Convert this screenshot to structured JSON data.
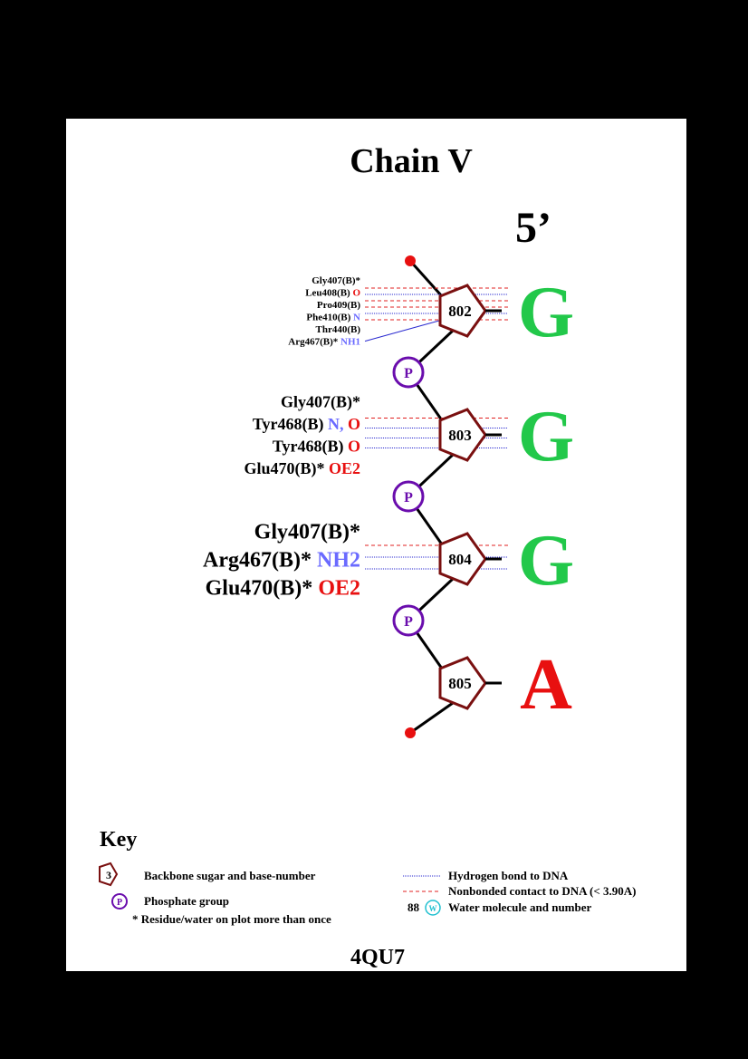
{
  "title": "Chain V",
  "end_label": "5’",
  "pdb_code": "4QU7",
  "colors": {
    "sugar": "#7a1010",
    "phosphate": "#6a0dad",
    "hbond": "#2a2ad0",
    "nonbonded": "#e02020",
    "base_G": "#22c84a",
    "base_A": "#e81010",
    "atom_blue": "#6a6aff",
    "atom_red": "#e81010",
    "terminal": "#e81010",
    "water": "#20c0d0"
  },
  "nucleotides": [
    {
      "number": "802",
      "base": "G",
      "contacts": [
        {
          "residue": "Gly407(B)*",
          "atoms": [],
          "lines": [
            "nonbonded"
          ]
        },
        {
          "residue": "Leu408(B)",
          "atoms": [
            {
              "t": "O",
              "c": "red"
            }
          ],
          "lines": [
            "hbond"
          ]
        },
        {
          "residue": "Pro409(B)",
          "atoms": [],
          "lines": [
            "nonbonded",
            "nonbonded"
          ]
        },
        {
          "residue": "Phe410(B)",
          "atoms": [
            {
              "t": "N",
              "c": "blue"
            }
          ],
          "lines": [
            "hbond"
          ]
        },
        {
          "residue": "Thr440(B)",
          "atoms": [],
          "lines": [
            "nonbonded"
          ]
        },
        {
          "residue": "Arg467(B)*",
          "atoms": [
            {
              "t": "NH1",
              "c": "blue"
            }
          ],
          "lines": [
            "hbond-diag"
          ]
        }
      ]
    },
    {
      "number": "803",
      "base": "G",
      "contacts": [
        {
          "residue": "Gly407(B)*",
          "atoms": [],
          "lines": [
            "nonbonded"
          ]
        },
        {
          "residue": "Tyr468(B)",
          "atoms": [
            {
              "t": "N,",
              "c": "blue"
            },
            {
              "t": "O",
              "c": "red"
            }
          ],
          "lines": [
            "hbond"
          ]
        },
        {
          "residue": "Tyr468(B)",
          "atoms": [
            {
              "t": "O",
              "c": "red"
            }
          ],
          "lines": [
            "hbond"
          ]
        },
        {
          "residue": "Glu470(B)*",
          "atoms": [
            {
              "t": "OE2",
              "c": "red"
            }
          ],
          "lines": [
            "hbond"
          ]
        }
      ]
    },
    {
      "number": "804",
      "base": "G",
      "contacts": [
        {
          "residue": "Gly407(B)*",
          "atoms": [],
          "lines": [
            "nonbonded"
          ]
        },
        {
          "residue": "Arg467(B)*",
          "atoms": [
            {
              "t": "NH2",
              "c": "blue"
            }
          ],
          "lines": [
            "hbond"
          ]
        },
        {
          "residue": "Glu470(B)*",
          "atoms": [
            {
              "t": "OE2",
              "c": "red"
            }
          ],
          "lines": [
            "hbond"
          ]
        }
      ]
    },
    {
      "number": "805",
      "base": "A",
      "contacts": []
    }
  ],
  "phosphate_label": "P",
  "key": {
    "title": "Key",
    "sugar_example_number": "3",
    "sugar_label": "Backbone sugar and base-number",
    "phosphate_symbol": "P",
    "phosphate_label": "Phosphate group",
    "repeat_note": "* Residue/water on plot more than once",
    "hbond_label": "Hydrogen bond to DNA",
    "nonbonded_label": "Nonbonded contact to DNA (< 3.90A)",
    "water_number": "88",
    "water_symbol": "W",
    "water_label": "Water molecule and number"
  }
}
